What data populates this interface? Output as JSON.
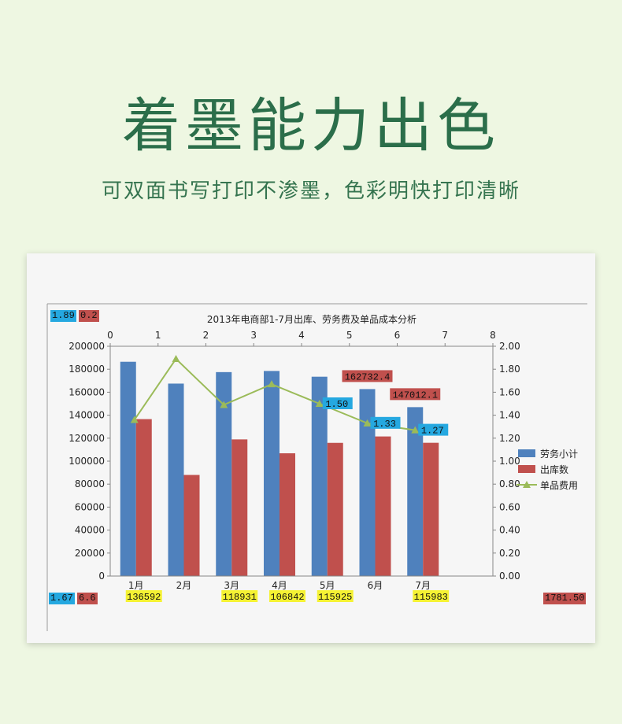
{
  "headline": "着墨能力出色",
  "subheadline": "可双面书写打印不渗墨，色彩明快打印清晰",
  "colors": {
    "background": "#eef7e2",
    "headline": "#2b6e4a",
    "bar_labor": "#4f81bd",
    "bar_outbound": "#c0504d",
    "line_unit_cost": "#9bbb59",
    "tag_blue": "#25a8e0",
    "tag_yellow": "#f5f233"
  },
  "tags": {
    "top_left_blue": "1.89",
    "top_left_red": "0.2",
    "bottom_left_blue": "1.67",
    "bottom_left_red": "6.6",
    "bottom_right_red": "1781.50"
  },
  "chart_data": {
    "type": "bar",
    "title": "2013年电商部1-7月出库、劳务费及单品成本分析",
    "categories": [
      "1月",
      "2月",
      "3月",
      "4月",
      "5月",
      "6月",
      "7月"
    ],
    "series": [
      {
        "name": "劳务小计",
        "type": "bar",
        "axis": "left",
        "values": [
          186500,
          167500,
          177500,
          178500,
          173500,
          162732.4,
          147012.1
        ]
      },
      {
        "name": "出库数",
        "type": "bar",
        "axis": "left",
        "values": [
          136592,
          88000,
          118931,
          106842,
          115925,
          121500,
          115983
        ]
      },
      {
        "name": "单品费用",
        "type": "line",
        "axis": "right",
        "values": [
          1.36,
          1.89,
          1.49,
          1.67,
          1.5,
          1.33,
          1.27
        ]
      }
    ],
    "ylim": [
      0,
      200000
    ],
    "yticks": [
      "200000",
      "180000",
      "160000",
      "140000",
      "120000",
      "100000",
      "80000",
      "60000",
      "40000",
      "20000",
      "0"
    ],
    "y2lim": [
      0,
      2
    ],
    "y2ticks": [
      "2.00",
      "1.80",
      "1.60",
      "1.40",
      "1.20",
      "1.00",
      "0.80",
      "0.60",
      "0.40",
      "0.20",
      "0.00"
    ],
    "top_axis_ticks": [
      "0",
      "1",
      "2",
      "3",
      "4",
      "5",
      "6",
      "7",
      "8"
    ],
    "data_labels_bar_labor": [
      "162732.4",
      "147012.1"
    ],
    "data_labels_bar_outbound": [
      "136592",
      "118931",
      "106842",
      "115925",
      "115983"
    ],
    "data_labels_line": [
      "1.50",
      "1.33",
      "1.27"
    ],
    "legend": [
      "劳务小计",
      "出库数",
      "单品费用"
    ],
    "legend_position": "right"
  }
}
